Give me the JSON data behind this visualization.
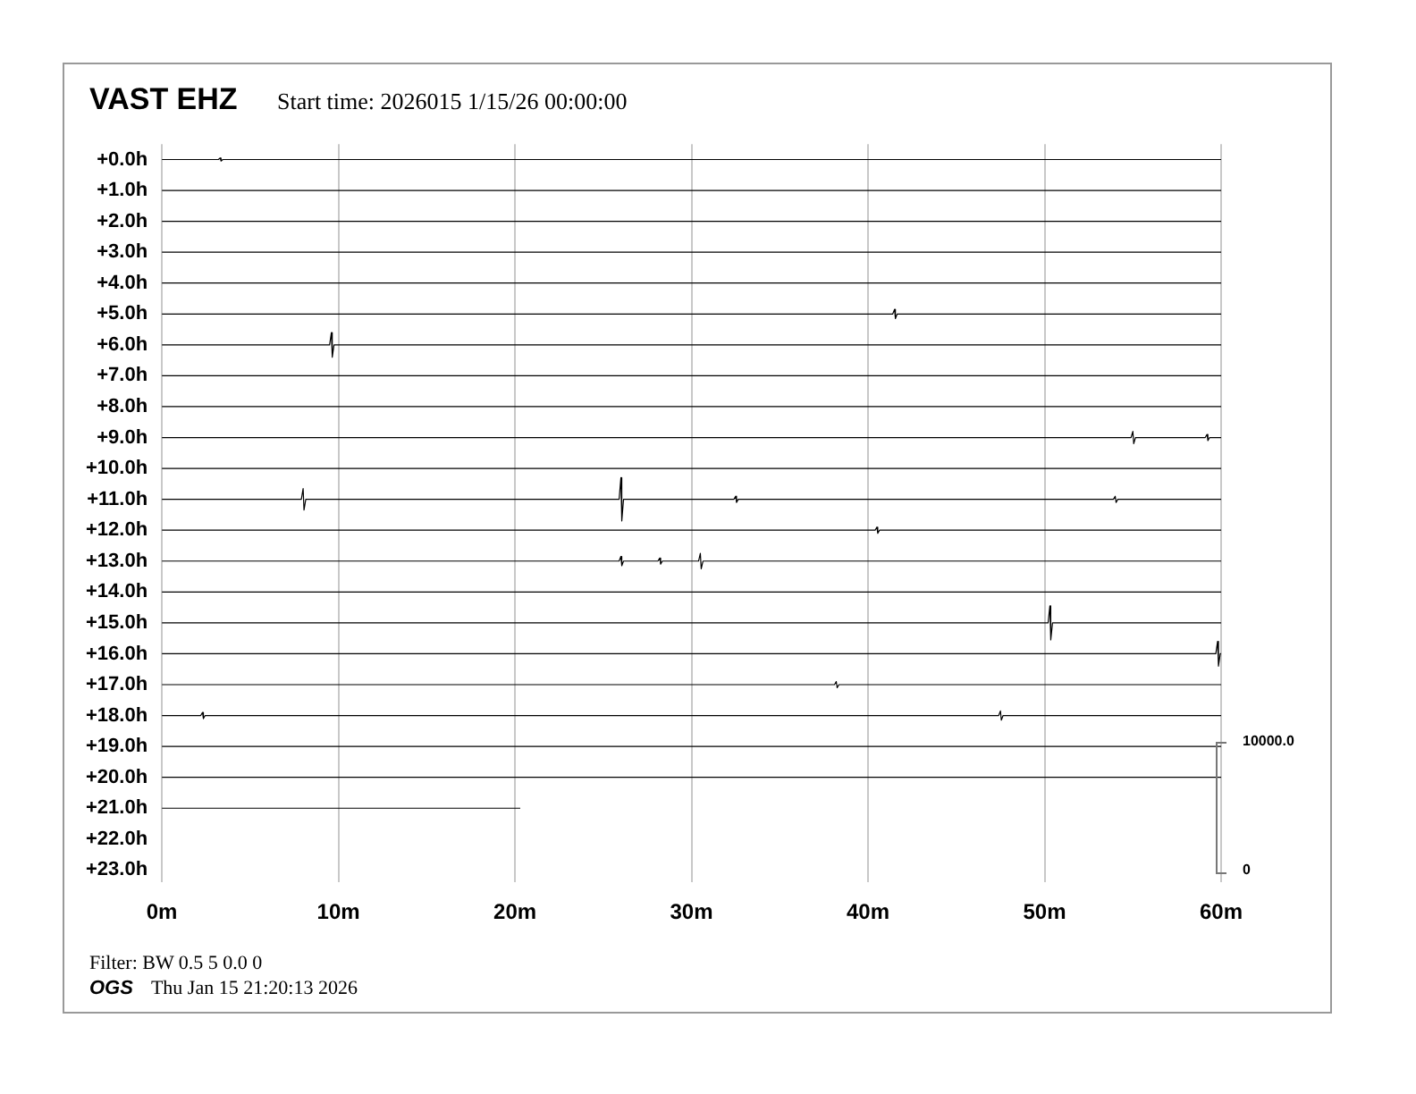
{
  "chart_data": {
    "type": "line",
    "title": "VAST EHZ",
    "subtitle": "Start time: 2026015  1/15/26 00:00:00",
    "annotations": [
      "Filter: BW 0.5 5 0.0 0",
      "OGS",
      "Thu Jan 15 21:20:13 2026",
      "10000.0",
      "0"
    ],
    "xlim": [
      0,
      60
    ],
    "xticks": [
      {
        "value": 0,
        "label": "0m"
      },
      {
        "value": 10,
        "label": "10m"
      },
      {
        "value": 20,
        "label": "20m"
      },
      {
        "value": 30,
        "label": "30m"
      },
      {
        "value": 40,
        "label": "40m"
      },
      {
        "value": 50,
        "label": "50m"
      },
      {
        "value": 60,
        "label": "60m"
      }
    ],
    "ylim": [
      23.4,
      -0.5
    ],
    "yticks": [
      {
        "value": 0,
        "label": "+0.0h"
      },
      {
        "value": 1,
        "label": "+1.0h"
      },
      {
        "value": 2,
        "label": "+2.0h"
      },
      {
        "value": 3,
        "label": "+3.0h"
      },
      {
        "value": 4,
        "label": "+4.0h"
      },
      {
        "value": 5,
        "label": "+5.0h"
      },
      {
        "value": 6,
        "label": "+6.0h"
      },
      {
        "value": 7,
        "label": "+7.0h"
      },
      {
        "value": 8,
        "label": "+8.0h"
      },
      {
        "value": 9,
        "label": "+9.0h"
      },
      {
        "value": 10,
        "label": "+10.0h"
      },
      {
        "value": 11,
        "label": "+11.0h"
      },
      {
        "value": 12,
        "label": "+12.0h"
      },
      {
        "value": 13,
        "label": "+13.0h"
      },
      {
        "value": 14,
        "label": "+14.0h"
      },
      {
        "value": 15,
        "label": "+15.0h"
      },
      {
        "value": 16,
        "label": "+16.0h"
      },
      {
        "value": 17,
        "label": "+17.0h"
      },
      {
        "value": 18,
        "label": "+18.0h"
      },
      {
        "value": 19,
        "label": "+19.0h"
      },
      {
        "value": 20,
        "label": "+20.0h"
      },
      {
        "value": 21,
        "label": "+21.0h"
      },
      {
        "value": 22,
        "label": "+22.0h"
      },
      {
        "value": 23,
        "label": "+23.0h"
      }
    ],
    "grid": "x",
    "marker": "none",
    "line_style": "solid",
    "series": [
      {
        "color": "#000000",
        "x": [
          0,
          3.2,
          3.3,
          3.35,
          3.45,
          60
        ],
        "values": [
          0,
          0,
          -0.05,
          0.05,
          0,
          0
        ]
      },
      {
        "color": "#000000",
        "x": [
          0,
          60
        ],
        "values": [
          1,
          1
        ]
      },
      {
        "color": "#000000",
        "x": [
          0,
          60
        ],
        "values": [
          2,
          2
        ]
      },
      {
        "color": "#000000",
        "x": [
          0,
          60
        ],
        "values": [
          3,
          3
        ]
      },
      {
        "color": "#000000",
        "x": [
          0,
          60
        ],
        "values": [
          4,
          4
        ]
      },
      {
        "color": "#000000",
        "x": [
          0,
          41.4,
          41.5,
          41.55,
          41.65,
          60
        ],
        "values": [
          5,
          5,
          4.85,
          5.15,
          5,
          5
        ]
      },
      {
        "color": "#000000",
        "x": [
          0,
          9.5,
          9.6,
          9.65,
          9.75,
          60
        ],
        "values": [
          6,
          6,
          5.6,
          6.4,
          6,
          6
        ]
      },
      {
        "color": "#000000",
        "x": [
          0,
          60
        ],
        "values": [
          7,
          7
        ]
      },
      {
        "color": "#000000",
        "x": [
          0,
          60
        ],
        "values": [
          8,
          8
        ]
      },
      {
        "color": "#000000",
        "x": [
          0,
          54.9,
          55,
          55.05,
          55.15,
          59.1,
          59.2,
          59.25,
          59.35,
          60
        ],
        "values": [
          9,
          9,
          8.8,
          9.2,
          9,
          9,
          8.9,
          9.1,
          9,
          9
        ]
      },
      {
        "color": "#000000",
        "x": [
          0,
          60
        ],
        "values": [
          10,
          10
        ]
      },
      {
        "color": "#000000",
        "x": [
          0,
          7.9,
          8,
          8.05,
          8.15,
          25.9,
          26,
          26.05,
          26.15,
          32.4,
          32.5,
          32.55,
          32.65,
          53.9,
          54,
          54.05,
          54.15,
          60
        ],
        "values": [
          11,
          11,
          10.65,
          11.35,
          11,
          11,
          10.3,
          11.7,
          11,
          11,
          10.9,
          11.1,
          11,
          11,
          10.9,
          11.1,
          11,
          11
        ]
      },
      {
        "color": "#000000",
        "x": [
          0,
          40.4,
          40.5,
          40.55,
          40.65,
          60
        ],
        "values": [
          12,
          12,
          11.9,
          12.1,
          12,
          12
        ]
      },
      {
        "color": "#000000",
        "x": [
          0,
          25.9,
          26,
          26.05,
          26.15,
          28.1,
          28.2,
          28.25,
          28.35,
          30.4,
          30.5,
          30.55,
          30.65,
          60
        ],
        "values": [
          13,
          13,
          12.85,
          13.15,
          13,
          13,
          12.9,
          13.1,
          13,
          13,
          12.75,
          13.25,
          13,
          13
        ]
      },
      {
        "color": "#000000",
        "x": [
          0,
          60
        ],
        "values": [
          14,
          14
        ]
      },
      {
        "color": "#000000",
        "x": [
          0,
          50.2,
          50.3,
          50.35,
          50.45,
          60
        ],
        "values": [
          15,
          15,
          14.45,
          15.55,
          15,
          15
        ]
      },
      {
        "color": "#000000",
        "x": [
          0,
          59.7,
          59.8,
          59.85,
          59.95,
          60
        ],
        "values": [
          16,
          16,
          15.6,
          16.4,
          16,
          16
        ]
      },
      {
        "color": "#000000",
        "x": [
          0,
          38.1,
          38.2,
          38.25,
          38.35,
          60
        ],
        "values": [
          17,
          17,
          16.9,
          17.1,
          17,
          17
        ]
      },
      {
        "color": "#000000",
        "x": [
          0,
          2.2,
          2.3,
          2.35,
          2.45,
          47.4,
          47.5,
          47.55,
          47.65,
          60
        ],
        "values": [
          18,
          18,
          17.9,
          18.1,
          18,
          18,
          17.85,
          18.15,
          18,
          18
        ]
      },
      {
        "color": "#000000",
        "x": [
          0,
          60
        ],
        "values": [
          19,
          19
        ]
      },
      {
        "color": "#000000",
        "x": [
          0,
          60
        ],
        "values": [
          20,
          20
        ]
      },
      {
        "color": "#000000",
        "x": [
          0,
          20.3
        ],
        "values": [
          21,
          21
        ]
      }
    ]
  }
}
